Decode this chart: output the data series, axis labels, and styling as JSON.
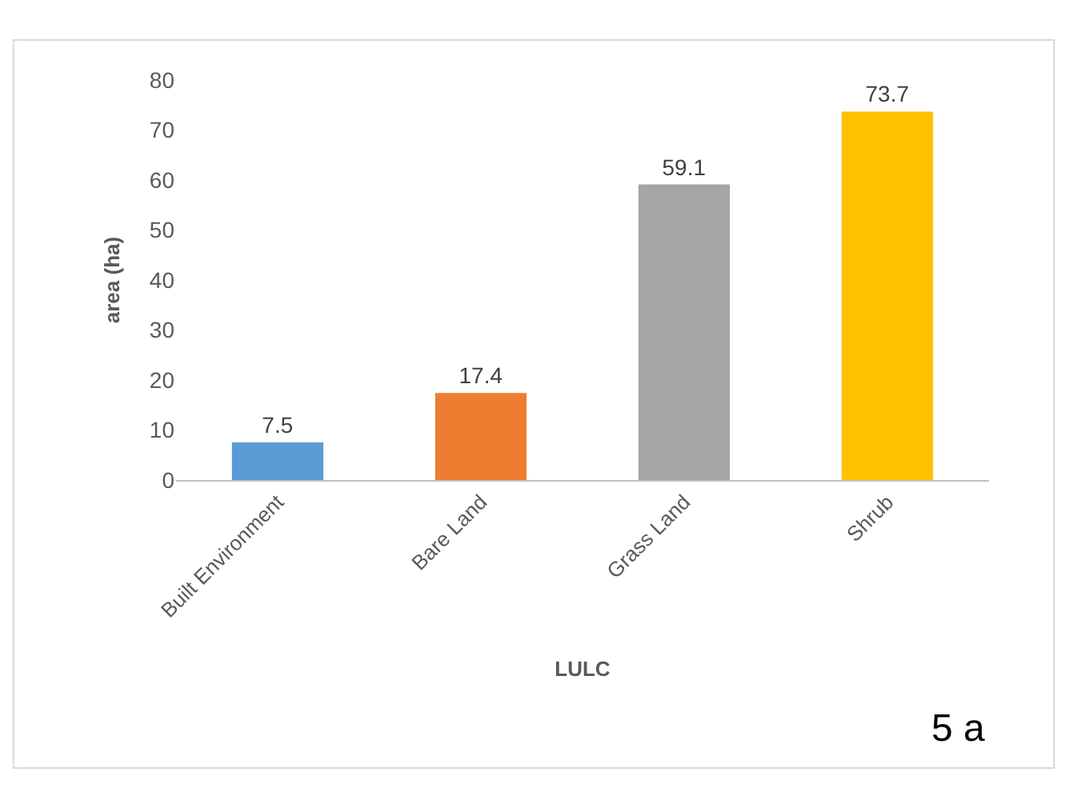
{
  "chart_data": {
    "type": "bar",
    "xlabel": "LULC",
    "ylabel": "area (ha)",
    "categories": [
      "Built Environment",
      "Bare Land",
      "Grass Land",
      "Shrub"
    ],
    "values": [
      7.5,
      17.4,
      59.1,
      73.7
    ],
    "colors": [
      "#5b9bd5",
      "#ed7d31",
      "#a5a5a5",
      "#ffc000"
    ],
    "ylim": [
      0,
      80
    ],
    "yticks": [
      0,
      10,
      20,
      30,
      40,
      50,
      60,
      70,
      80
    ],
    "data_labels": true,
    "annotations": [
      "5 a"
    ]
  }
}
